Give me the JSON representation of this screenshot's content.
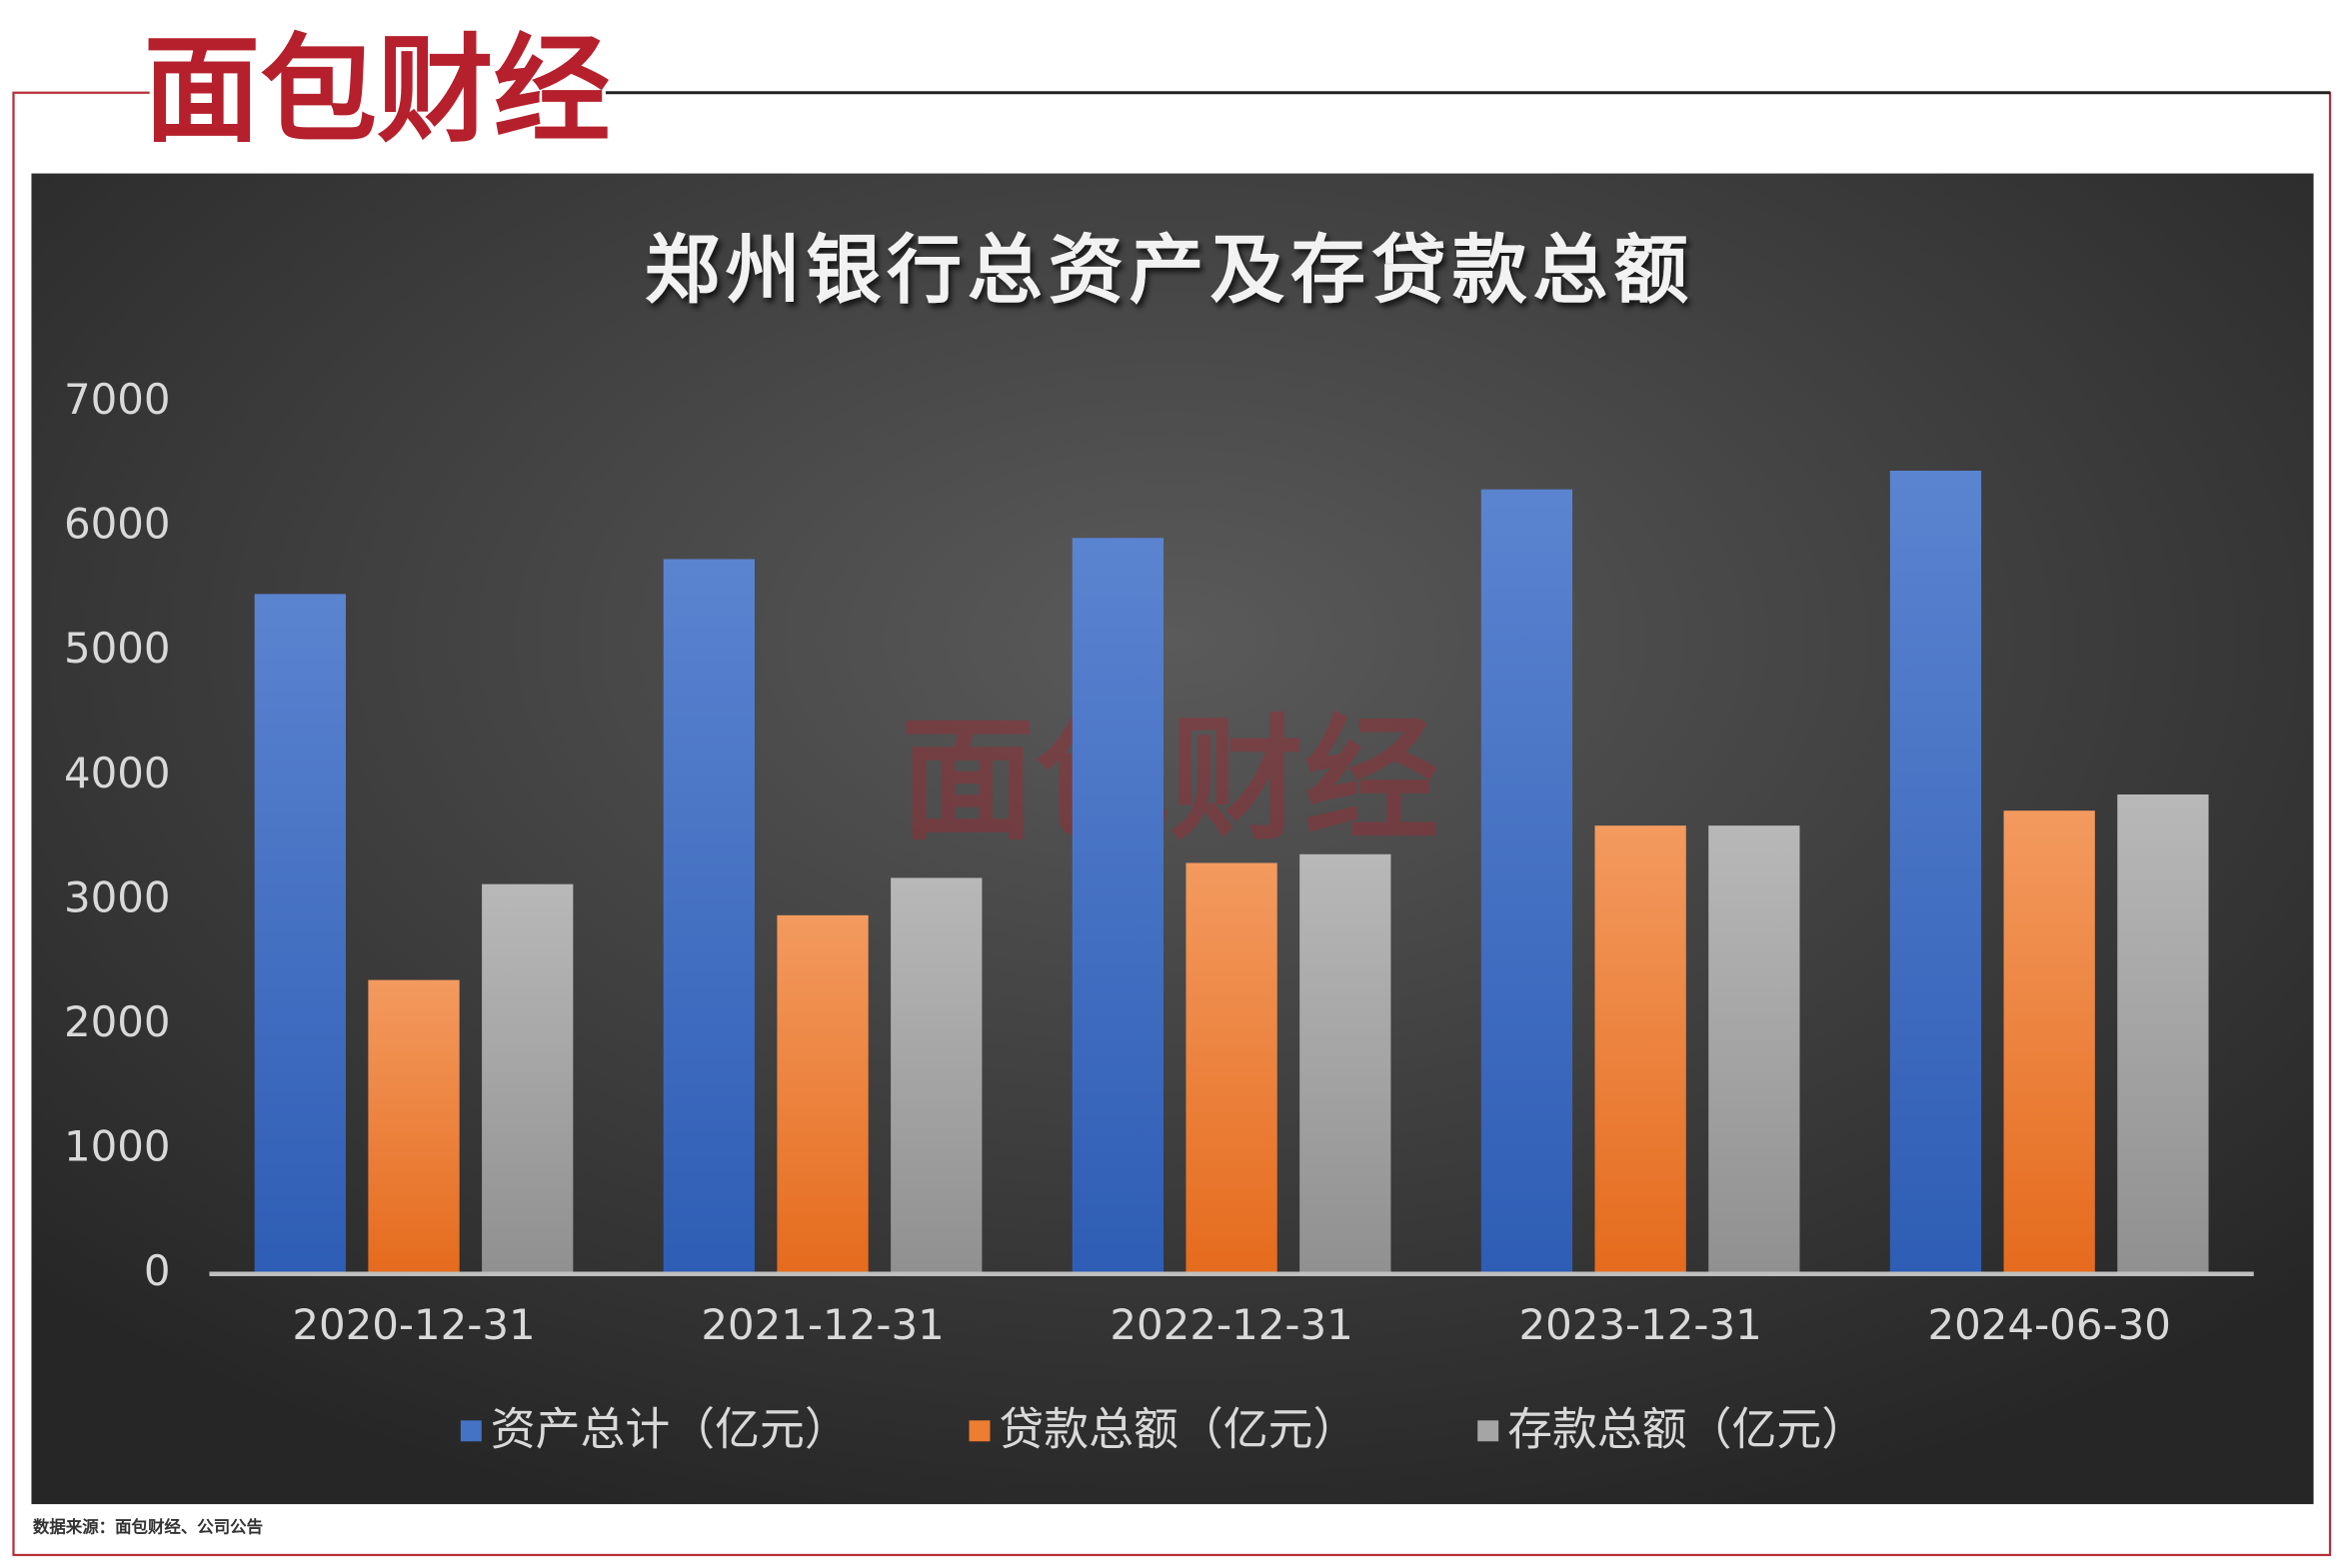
{
  "logo": "面包财经",
  "source": "数据来源：面包财经、公司公告",
  "chart_data": {
    "type": "bar",
    "title": "郑州银行总资产及存贷款总额",
    "categories": [
      "2020-12-31",
      "2021-12-31",
      "2022-12-31",
      "2023-12-31",
      "2024-06-30"
    ],
    "series": [
      {
        "name": "资产总计（亿元）",
        "color": "#4472c4",
        "values": [
          5460,
          5740,
          5910,
          6300,
          6450
        ]
      },
      {
        "name": "贷款总额（亿元）",
        "color": "#ed7d31",
        "values": [
          2360,
          2880,
          3300,
          3600,
          3720
        ]
      },
      {
        "name": "存款总额（亿元）",
        "color": "#a5a5a5",
        "values": [
          3130,
          3180,
          3370,
          3600,
          3850
        ]
      }
    ],
    "ylim": [
      0,
      7000
    ],
    "yticks": [
      0,
      1000,
      2000,
      3000,
      4000,
      5000,
      6000,
      7000
    ],
    "grid": false,
    "legend": "bottom"
  }
}
